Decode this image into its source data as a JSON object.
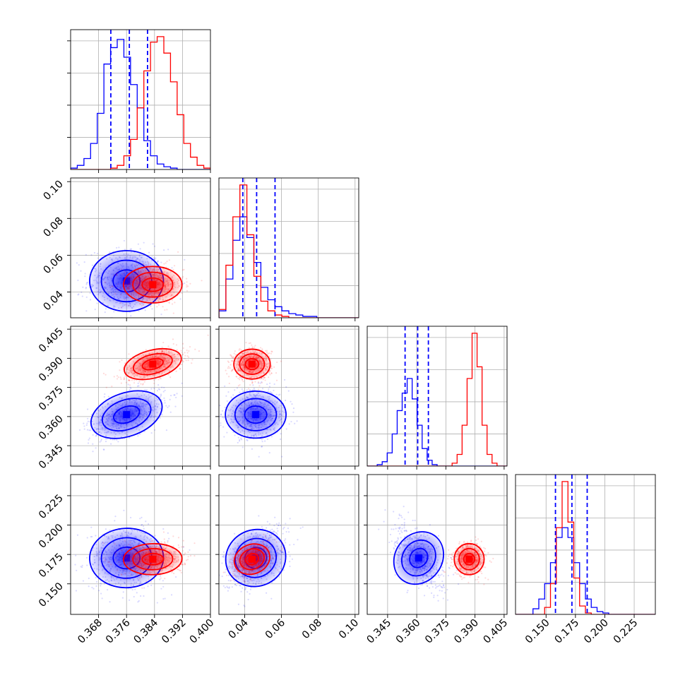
{
  "chart_data": {
    "type": "corner",
    "grid": true,
    "series": [
      {
        "color": "#0000ff",
        "quantiles": {
          "a": [
            0.3715,
            0.3768,
            0.382
          ],
          "b": [
            0.039,
            0.0465,
            0.0565
          ],
          "c": [
            0.354,
            0.3605,
            0.366
          ],
          "d": [
            0.158,
            0.172,
            0.185
          ]
        },
        "peak": {
          "a": 0.376,
          "b": 0.046,
          "c": 0.361,
          "d": 0.172
        },
        "spread": {
          "a": 0.0048,
          "b": 0.0075,
          "c": 0.0055,
          "d": 0.0115
        },
        "hist_counts": {
          "a": [
            1,
            3,
            8,
            19,
            41,
            77,
            89,
            95,
            82,
            62,
            45,
            21,
            10,
            4,
            2,
            1,
            0,
            0,
            0,
            0,
            0
          ],
          "b": [
            5,
            28,
            56,
            73,
            58,
            40,
            22,
            13,
            8,
            5,
            3,
            2,
            1,
            1,
            0,
            0,
            0,
            0,
            0,
            0
          ],
          "c": [
            0,
            0,
            1,
            3,
            9,
            22,
            38,
            50,
            60,
            46,
            28,
            12,
            4,
            1,
            0,
            0,
            0,
            0,
            0,
            0,
            0,
            0,
            0,
            0,
            0,
            0,
            0,
            0
          ],
          "d": [
            0,
            0,
            0,
            4,
            11,
            22,
            37,
            55,
            62,
            55,
            37,
            22,
            11,
            5,
            2,
            1,
            0,
            0,
            0,
            0,
            0,
            0,
            0,
            0
          ]
        }
      },
      {
        "color": "#ff0000",
        "quantiles": {
          "a": [
            0.3805,
            0.384,
            0.3875
          ],
          "b": [
            0.0395,
            0.0445,
            0.0505
          ],
          "c": [
            0.383,
            0.3875,
            0.3915
          ],
          "d": [
            0.166,
            0.171,
            0.176
          ]
        },
        "peak": {
          "a": 0.3835,
          "b": 0.044,
          "c": 0.387,
          "d": 0.171
        },
        "spread": {
          "a": 0.0038,
          "b": 0.0045,
          "c": 0.0035,
          "d": 0.006
        },
        "hist_counts": {
          "a": [
            0,
            0,
            0,
            0,
            0,
            0,
            1,
            3,
            10,
            22,
            45,
            72,
            93,
            97,
            85,
            64,
            40,
            19,
            9,
            3,
            1
          ],
          "b": [
            6,
            38,
            73,
            96,
            60,
            30,
            12,
            5,
            2,
            1,
            0,
            0,
            0,
            0,
            0,
            0,
            0,
            0,
            0,
            0
          ],
          "c": [
            0,
            0,
            0,
            0,
            0,
            0,
            0,
            0,
            0,
            0,
            0,
            0,
            0,
            0,
            0,
            0,
            0,
            2,
            8,
            28,
            60,
            91,
            68,
            28,
            8,
            2,
            0,
            0
          ],
          "d": [
            0,
            0,
            0,
            0,
            0,
            5,
            22,
            62,
            95,
            66,
            26,
            6,
            1,
            0,
            0,
            0,
            0,
            0,
            0,
            0,
            0,
            0,
            0,
            0
          ]
        }
      }
    ],
    "params": [
      "a",
      "b",
      "c",
      "d"
    ],
    "ranges": {
      "a": [
        0.36,
        0.4
      ],
      "b": [
        0.026,
        0.102
      ],
      "c": [
        0.3345,
        0.4065
      ],
      "d": [
        0.124,
        0.243
      ]
    },
    "ticks": {
      "a": [
        "0.368",
        "0.376",
        "0.384",
        "0.392",
        "0.400"
      ],
      "b": [
        "0.04",
        "0.06",
        "0.08",
        "0.10"
      ],
      "c": [
        "0.345",
        "0.360",
        "0.375",
        "0.390",
        "0.405"
      ],
      "d": [
        "0.150",
        "0.175",
        "0.200",
        "0.225"
      ]
    },
    "quantile_line_style": "dashed",
    "quantile_line_color": "#0000ff"
  }
}
